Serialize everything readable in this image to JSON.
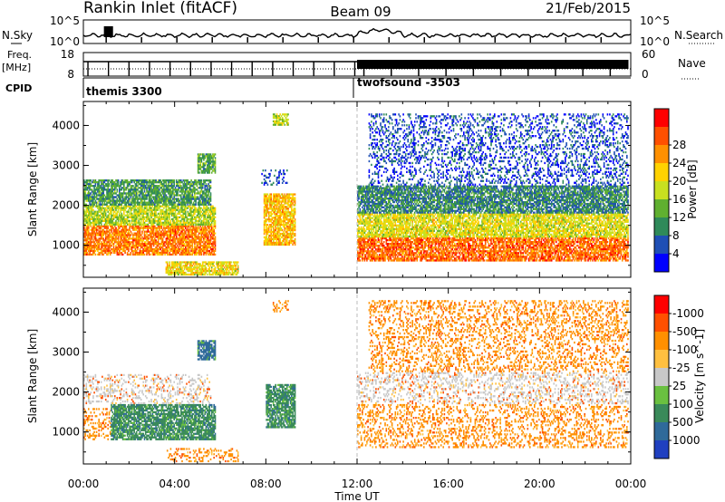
{
  "header": {
    "station": "Rankin Inlet (fitACF)",
    "beam": "Beam 09",
    "date": "21/Feb/2015"
  },
  "top_panels": {
    "nsky_label": "N.Sky",
    "nsky_ticks": [
      "10^5",
      "10^0"
    ],
    "nsearch_label": "N.Search",
    "nsearch_ticks": [
      "10^5",
      "10^0"
    ],
    "freq_label": "Freq.",
    "freq_unit": "[MHz]",
    "freq_ticks": [
      "18",
      "8"
    ],
    "nave_label": "Nave",
    "nave_ticks": [
      "60",
      "0"
    ],
    "cpid_label": "CPID",
    "cpid_segments": [
      {
        "name": "themis 3300",
        "start_hour": 0
      },
      {
        "name": "twofsound -3503",
        "start_hour": 12
      }
    ]
  },
  "chart_data": [
    {
      "type": "heatmap",
      "title": "",
      "xlabel": "",
      "ylabel": "Slant Range [km]",
      "xlim_hours": [
        0,
        24
      ],
      "ylim_km": [
        200,
        4600
      ],
      "yticks": [
        "1000",
        "2000",
        "3000",
        "4000"
      ],
      "colorbar": {
        "label": "Power [dB]",
        "ticks": [
          "4",
          "8",
          "12",
          "16",
          "20",
          "24",
          "28"
        ],
        "colors": [
          "#0000ff",
          "#1f4fb5",
          "#2f8a5a",
          "#60b030",
          "#c8e020",
          "#ffd200",
          "#ff9000",
          "#ff5000",
          "#ff0000"
        ]
      },
      "regions": [
        {
          "t0": 0.0,
          "t1": 5.8,
          "r0": 750,
          "r1": 1500,
          "value": 27
        },
        {
          "t0": 0.0,
          "t1": 5.8,
          "r0": 1500,
          "r1": 2000,
          "value": 17
        },
        {
          "t0": 0.0,
          "t1": 5.6,
          "r0": 2000,
          "r1": 2650,
          "value": 11
        },
        {
          "t0": 3.6,
          "t1": 6.8,
          "r0": 250,
          "r1": 600,
          "value": 20
        },
        {
          "t0": 5.0,
          "t1": 5.8,
          "r0": 2800,
          "r1": 3300,
          "value": 12
        },
        {
          "t0": 7.9,
          "t1": 9.3,
          "r0": 1000,
          "r1": 2300,
          "value": 23
        },
        {
          "t0": 7.8,
          "t1": 9.0,
          "r0": 2500,
          "r1": 2900,
          "value": 5
        },
        {
          "t0": 8.3,
          "t1": 9.0,
          "r0": 4000,
          "r1": 4300,
          "value": 17
        },
        {
          "t0": 12.0,
          "t1": 23.9,
          "r0": 600,
          "r1": 1200,
          "value": 28
        },
        {
          "t0": 12.0,
          "t1": 23.9,
          "r0": 1200,
          "r1": 1800,
          "value": 19
        },
        {
          "t0": 12.0,
          "t1": 23.9,
          "r0": 1800,
          "r1": 2500,
          "value": 9
        },
        {
          "t0": 12.5,
          "t1": 23.9,
          "r0": 2500,
          "r1": 4300,
          "value": 5
        }
      ]
    },
    {
      "type": "heatmap",
      "title": "",
      "xlabel": "Time UT",
      "ylabel": "Slant Range [km]",
      "xlim_hours": [
        0,
        24
      ],
      "ylim_km": [
        200,
        4600
      ],
      "xticks": [
        "00:00",
        "04:00",
        "08:00",
        "12:00",
        "16:00",
        "20:00",
        "00:00"
      ],
      "yticks": [
        "1000",
        "2000",
        "3000",
        "4000"
      ],
      "colorbar": {
        "label": "Velocity [m s^-1]",
        "ticks": [
          "1000",
          "500",
          "100",
          "25",
          "-25",
          "-100",
          "-500",
          "-1000"
        ],
        "colors": [
          "#2040c0",
          "#2f6a9a",
          "#3a8a5a",
          "#6ac040",
          "#c8c8c8",
          "#ffc040",
          "#ff9000",
          "#ff5000",
          "#ff0000"
        ]
      },
      "regions": [
        {
          "t0": 0.0,
          "t1": 1.2,
          "r0": 800,
          "r1": 1600,
          "value": -300
        },
        {
          "t0": 1.2,
          "t1": 5.8,
          "r0": 800,
          "r1": 1700,
          "value": 300
        },
        {
          "t0": 0.0,
          "t1": 5.6,
          "r0": 1700,
          "r1": 2450,
          "value": 0
        },
        {
          "t0": 3.6,
          "t1": 6.8,
          "r0": 250,
          "r1": 600,
          "value": -300
        },
        {
          "t0": 5.0,
          "t1": 5.8,
          "r0": 2800,
          "r1": 3300,
          "value": 700
        },
        {
          "t0": 8.0,
          "t1": 9.3,
          "r0": 1100,
          "r1": 2200,
          "value": 300
        },
        {
          "t0": 8.3,
          "t1": 9.0,
          "r0": 4000,
          "r1": 4300,
          "value": -300
        },
        {
          "t0": 12.0,
          "t1": 23.9,
          "r0": 600,
          "r1": 1700,
          "value": -300
        },
        {
          "t0": 12.0,
          "t1": 23.9,
          "r0": 1700,
          "r1": 2500,
          "value": 0
        },
        {
          "t0": 12.5,
          "t1": 23.9,
          "r0": 2500,
          "r1": 4300,
          "value": -300
        }
      ]
    }
  ]
}
